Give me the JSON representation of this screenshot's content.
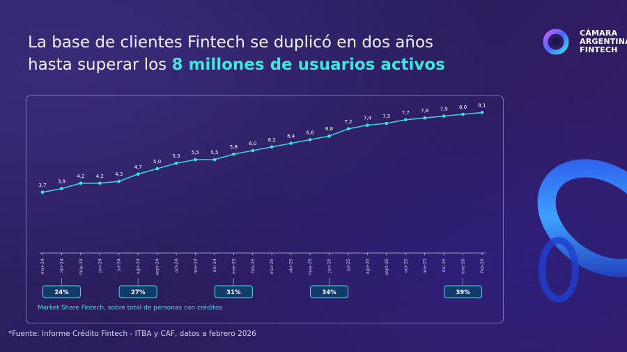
{
  "header": {
    "title_line1": "La base de clientes Fintech se duplicó en dos años",
    "title_line2_plain": "hasta superar los ",
    "title_line2_highlight": "8 millones de usuarios activos"
  },
  "logo": {
    "line1": "CÁMARA",
    "line2": "ARGENTINA",
    "line3": "FINTECH"
  },
  "chart_data": {
    "type": "line",
    "x": [
      "mar-24",
      "abr-24",
      "may-24",
      "jun-24",
      "jul-24",
      "ago-24",
      "sept-24",
      "oct-24",
      "nov-24",
      "dic-24",
      "ene-25",
      "feb-25",
      "mar-25",
      "abr-25",
      "may-25",
      "jun-25",
      "jul-25",
      "ago-25",
      "sept-25",
      "oct-25",
      "nov-25",
      "dic-25",
      "ene-26",
      "feb-26"
    ],
    "series": [
      {
        "values": [
          3.7,
          3.9,
          4.2,
          4.2,
          4.3,
          4.7,
          5.0,
          5.3,
          5.5,
          5.5,
          5.8,
          6.0,
          6.2,
          6.4,
          6.6,
          6.8,
          7.2,
          7.4,
          7.5,
          7.7,
          7.8,
          7.9,
          8.0,
          8.1
        ],
        "labels": [
          "3,7",
          "3,9",
          "4,2",
          "4,2",
          "4,3",
          "4,7",
          "5,0",
          "5,3",
          "5,5",
          "5,5",
          "5,8",
          "6,0",
          "6,2",
          "6,4",
          "6,6",
          "6,8",
          "7,2",
          "7,4",
          "7,5",
          "7,7",
          "7,8",
          "7,9",
          "8,0",
          "8,1"
        ]
      }
    ],
    "ylim": [
      2.5,
      8.5
    ],
    "grid": false,
    "colors": {
      "line": "#34d6d0",
      "accent": "#3ee6dc",
      "axis": "#b9b2d8"
    },
    "market_share": {
      "label": "Market Share Fintech, sobre total de personas con créditos",
      "badges": [
        {
          "month": "abr-24",
          "value": "24%"
        },
        {
          "month": "ago-24",
          "value": "27%"
        },
        {
          "month": "ene-25",
          "value": "31%"
        },
        {
          "month": "jun-25",
          "value": "34%"
        },
        {
          "month": "ene-26",
          "value": "39%"
        }
      ]
    }
  },
  "footnote": "*Fuente: Informe Crédito Fintech - ITBA y CAF, datos a febrero 2026"
}
